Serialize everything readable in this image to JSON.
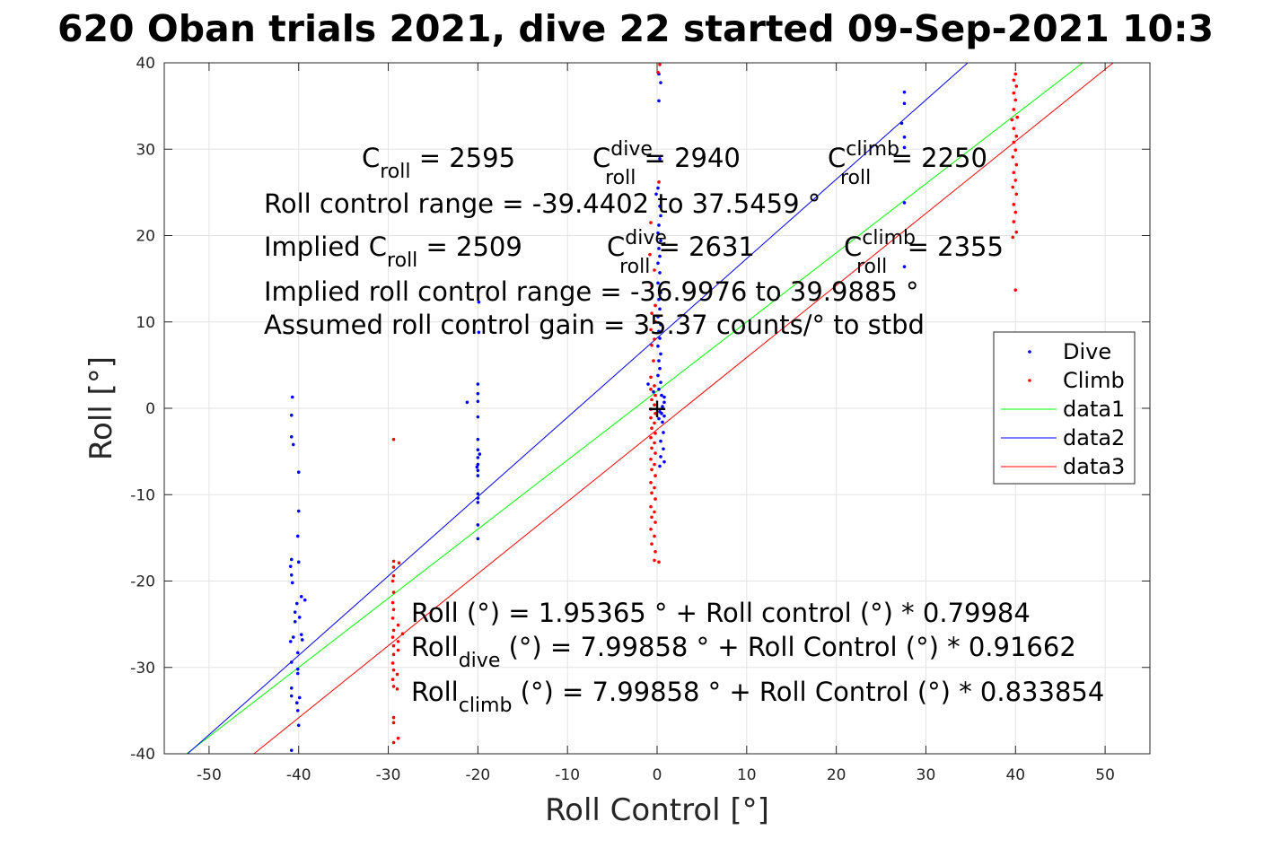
{
  "chart_data": {
    "type": "scatter",
    "title": "620 Oban trials 2021, dive 22 started 09-Sep-2021 10:3",
    "xlabel": "Roll Control [°]",
    "ylabel": "Roll [°]",
    "xlim": [
      -55,
      55
    ],
    "ylim": [
      -40,
      40
    ],
    "xticks": [
      -50,
      -40,
      -30,
      -20,
      -10,
      0,
      10,
      20,
      30,
      40,
      50
    ],
    "yticks": [
      -40,
      -30,
      -20,
      -10,
      0,
      10,
      20,
      30,
      40
    ],
    "grid": true,
    "legend": {
      "placement": "right",
      "entries": [
        {
          "label": "Dive",
          "kind": "dots",
          "color": "#0000ff"
        },
        {
          "label": "Climb",
          "kind": "dots",
          "color": "#ff0000"
        },
        {
          "label": "data1",
          "kind": "line",
          "color": "#00ff00"
        },
        {
          "label": "data2",
          "kind": "line",
          "color": "#0000ff"
        },
        {
          "label": "data3",
          "kind": "line",
          "color": "#ff0000"
        }
      ]
    },
    "series": [
      {
        "name": "Dive",
        "kind": "scatter",
        "color": "#0000ff",
        "points": [
          [
            -40.7,
            1.3
          ],
          [
            -40.8,
            -0.8
          ],
          [
            -40.8,
            -3.3
          ],
          [
            -40.6,
            -4.2
          ],
          [
            -40,
            -7.4
          ],
          [
            -40,
            -11.9
          ],
          [
            -40.1,
            -14.8
          ],
          [
            -40.8,
            -17.5
          ],
          [
            -40.9,
            -18.3
          ],
          [
            -40.8,
            -19.3
          ],
          [
            -40.7,
            -20.2
          ],
          [
            -40,
            -17.8
          ],
          [
            -39.7,
            -21.8
          ],
          [
            -40.2,
            -22.6
          ],
          [
            -40.4,
            -23.6
          ],
          [
            -39.9,
            -24.2
          ],
          [
            -40.4,
            -24.7
          ],
          [
            -39.7,
            -26.2
          ],
          [
            -40.6,
            -26.5
          ],
          [
            -40.9,
            -27
          ],
          [
            -40.1,
            -28.3
          ],
          [
            -40.8,
            -29.4
          ],
          [
            -40.1,
            -30.2
          ],
          [
            -40.1,
            -30.7
          ],
          [
            -40.8,
            -32.4
          ],
          [
            -40.8,
            -33.3
          ],
          [
            -39.9,
            -33.5
          ],
          [
            -40.2,
            -34.1
          ],
          [
            -40.1,
            -35
          ],
          [
            -40,
            -36.7
          ],
          [
            -40.8,
            -39.6
          ],
          [
            -39.3,
            -22.2
          ],
          [
            -39.6,
            -26.8
          ],
          [
            -19.9,
            12.3
          ],
          [
            -19.9,
            8.8
          ],
          [
            -20,
            2.8
          ],
          [
            -20,
            1.7
          ],
          [
            -20,
            0.8
          ],
          [
            -21.2,
            0.7
          ],
          [
            -20,
            -1
          ],
          [
            -20,
            -3.6
          ],
          [
            -20,
            -4.8
          ],
          [
            -20,
            -5.7
          ],
          [
            -20,
            -6.5
          ],
          [
            -20,
            -7.2
          ],
          [
            -20,
            -7.8
          ],
          [
            -20,
            -9.9
          ],
          [
            -20,
            -10.4
          ],
          [
            -20,
            -10.9
          ],
          [
            -20,
            -13.5
          ],
          [
            -20,
            -15.1
          ],
          [
            -19.8,
            -5.3
          ],
          [
            -20.1,
            -6.8
          ],
          [
            0.2,
            38.7
          ],
          [
            0.4,
            37.7
          ],
          [
            0.2,
            35.6
          ],
          [
            0.3,
            28.9
          ],
          [
            0.1,
            25.5
          ],
          [
            -0.1,
            24.8
          ],
          [
            0.3,
            23.4
          ],
          [
            0.4,
            22.3
          ],
          [
            0.2,
            21.2
          ],
          [
            0.1,
            20.3
          ],
          [
            0.4,
            19.4
          ],
          [
            0.2,
            18.5
          ],
          [
            0.3,
            17.6
          ],
          [
            0.1,
            16.8
          ],
          [
            0.3,
            15.7
          ],
          [
            0.1,
            14.5
          ],
          [
            0.4,
            13.4
          ],
          [
            0.2,
            12.6
          ],
          [
            0.3,
            11.5
          ],
          [
            0.1,
            10.6
          ],
          [
            0.4,
            9.7
          ],
          [
            0.2,
            8.9
          ],
          [
            0.3,
            8.1
          ],
          [
            0.1,
            7.2
          ],
          [
            0.4,
            6.3
          ],
          [
            0.2,
            5.5
          ],
          [
            0.3,
            4.6
          ],
          [
            0.1,
            3.8
          ],
          [
            0.4,
            3
          ],
          [
            0.2,
            2.2
          ],
          [
            0.5,
            1.5
          ],
          [
            0.8,
            1.3
          ],
          [
            0.8,
            0.7
          ],
          [
            0.3,
            -0.4
          ],
          [
            0.8,
            -0.9
          ],
          [
            0.6,
            -1.6
          ],
          [
            0.7,
            -2.8
          ],
          [
            0.4,
            -3.8
          ],
          [
            0.7,
            -4.7
          ],
          [
            0.4,
            -5.6
          ],
          [
            0.8,
            -6.2
          ],
          [
            0.3,
            -6.7
          ],
          [
            -1,
            2.8
          ],
          [
            -0.4,
            1.9
          ],
          [
            0.6,
            0.2
          ],
          [
            0.5,
            -0.6
          ],
          [
            0.2,
            -1.2
          ],
          [
            27.6,
            36.6
          ],
          [
            27.6,
            35.3
          ],
          [
            27.3,
            33
          ],
          [
            27.6,
            31.4
          ],
          [
            27.6,
            30.2
          ],
          [
            27.6,
            23.8
          ],
          [
            27.6,
            16.4
          ]
        ]
      },
      {
        "name": "Climb",
        "kind": "scatter",
        "color": "#ff0000",
        "points": [
          [
            -29.4,
            -3.6
          ],
          [
            -29.4,
            -17.7
          ],
          [
            -28.8,
            -17.9
          ],
          [
            -29.4,
            -18.4
          ],
          [
            -29.4,
            -19.4
          ],
          [
            -29.5,
            -20
          ],
          [
            -29.4,
            -21.3
          ],
          [
            -29.5,
            -22.5
          ],
          [
            -29.4,
            -23.3
          ],
          [
            -29.5,
            -24.3
          ],
          [
            -28.9,
            -25.1
          ],
          [
            -29.4,
            -25.7
          ],
          [
            -28.4,
            -26.1
          ],
          [
            -29.5,
            -26.5
          ],
          [
            -28.9,
            -27
          ],
          [
            -29.4,
            -27.5
          ],
          [
            -28.9,
            -28
          ],
          [
            -29.4,
            -28.5
          ],
          [
            -29.5,
            -29.5
          ],
          [
            -29.4,
            -30.3
          ],
          [
            -29,
            -30.8
          ],
          [
            -29.5,
            -31.4
          ],
          [
            -29.4,
            -32.2
          ],
          [
            -29,
            -32.5
          ],
          [
            -29.4,
            -35.8
          ],
          [
            -29.4,
            -36.4
          ],
          [
            -28.9,
            -38.2
          ],
          [
            -29.4,
            -38.7
          ],
          [
            -0.7,
            21.5
          ],
          [
            0.2,
            26.2
          ],
          [
            0.1,
            38.9
          ],
          [
            0.3,
            39.8
          ],
          [
            -0.8,
            17.8
          ],
          [
            -0.3,
            16
          ],
          [
            -0.6,
            14.2
          ],
          [
            -0.2,
            11.9
          ],
          [
            -0.6,
            11
          ],
          [
            -0.2,
            10
          ],
          [
            -0.7,
            9.1
          ],
          [
            -0.3,
            8
          ],
          [
            -0.6,
            7.3
          ],
          [
            -0.4,
            5.5
          ],
          [
            -0.7,
            3.6
          ],
          [
            -0.3,
            2.6
          ],
          [
            -0.7,
            2.2
          ],
          [
            -0.2,
            1.5
          ],
          [
            -0.6,
            1
          ],
          [
            -0.3,
            0.4
          ],
          [
            -0.7,
            -0.1
          ],
          [
            -0.2,
            -0.6
          ],
          [
            -0.7,
            -1.1
          ],
          [
            -0.3,
            -1.7
          ],
          [
            -0.6,
            -2.3
          ],
          [
            -0.2,
            -2.9
          ],
          [
            -0.7,
            -3.4
          ],
          [
            -0.3,
            -4
          ],
          [
            -0.6,
            -4.6
          ],
          [
            -0.2,
            -5.2
          ],
          [
            -0.7,
            -5.9
          ],
          [
            -0.3,
            -6.5
          ],
          [
            -0.6,
            -7.1
          ],
          [
            -0.2,
            -7.8
          ],
          [
            -0.7,
            -8.6
          ],
          [
            -0.3,
            -9.2
          ],
          [
            -0.6,
            -9.8
          ],
          [
            -0.2,
            -10.5
          ],
          [
            -0.7,
            -11.4
          ],
          [
            -0.3,
            -12
          ],
          [
            -0.6,
            -12.6
          ],
          [
            -0.2,
            -13.2
          ],
          [
            -0.7,
            -14
          ],
          [
            -0.3,
            -14.8
          ],
          [
            -0.6,
            -15.7
          ],
          [
            -0.2,
            -16.6
          ],
          [
            -0.3,
            -17.6
          ],
          [
            0.2,
            -17.8
          ],
          [
            40,
            38.7
          ],
          [
            39.8,
            38
          ],
          [
            40.1,
            37.3
          ],
          [
            39.8,
            36.5
          ],
          [
            40,
            35.7
          ],
          [
            39.8,
            34.6
          ],
          [
            40.2,
            33.7
          ],
          [
            39.6,
            33.4
          ],
          [
            39.8,
            32.4
          ],
          [
            40.1,
            31.5
          ],
          [
            39.8,
            30.8
          ],
          [
            40,
            29.9
          ],
          [
            39.7,
            29.1
          ],
          [
            40.1,
            28.2
          ],
          [
            39.8,
            27.3
          ],
          [
            40,
            26.4
          ],
          [
            39.7,
            25.6
          ],
          [
            40.1,
            24.8
          ],
          [
            39.8,
            23.6
          ],
          [
            40,
            22.7
          ],
          [
            39.8,
            21.6
          ],
          [
            40.1,
            20.4
          ],
          [
            39.7,
            19.8
          ],
          [
            40,
            13.7
          ]
        ]
      },
      {
        "name": "data1",
        "kind": "line",
        "color": "#00ff00",
        "points": [
          [
            -52.5,
            -40
          ],
          [
            47.5,
            40
          ]
        ]
      },
      {
        "name": "data2",
        "kind": "line",
        "color": "#0000ff",
        "points": [
          [
            -52.4,
            -40
          ],
          [
            35,
            40.3
          ]
        ]
      },
      {
        "name": "data3",
        "kind": "line",
        "color": "#ff0000",
        "points": [
          [
            -45,
            -40
          ],
          [
            50.9,
            40
          ]
        ]
      }
    ],
    "marker": {
      "label": "+",
      "x": 0,
      "y": 0
    },
    "annotations": {
      "top": [
        {
          "base": "C",
          "sub": "roll",
          "rest": " = 2595"
        },
        {
          "base": "C",
          "sub": "roll",
          "sup": "dive",
          "rest": " = 2940"
        },
        {
          "base": "C",
          "sub": "roll",
          "sup": "climb",
          "rest": " = 2250"
        }
      ],
      "range_line": "Roll control range = -39.4402 to 37.5459 °",
      "implied": [
        {
          "base": "Implied C",
          "sub": "roll",
          "rest": " = 2509"
        },
        {
          "base": "C",
          "sub": "roll",
          "sup": "dive",
          "rest": " = 2631"
        },
        {
          "base": "C",
          "sub": "roll",
          "sup": "climb",
          "rest": " = 2355"
        }
      ],
      "implied_range_line": "Implied roll control range = -36.9976 to 39.9885 °",
      "gain_line": "Assumed roll control gain = 35.37 counts/° to stbd",
      "fits": [
        {
          "base": "Roll",
          "rest": " (°) = 1.95365 ° + Roll control (°) * 0.79984"
        },
        {
          "base": "Roll",
          "sub": "dive",
          "rest": " (°) = 7.99858 ° + Roll Control (°) * 0.91662"
        },
        {
          "base": "Roll",
          "sub": "climb",
          "rest": " (°) = 7.99858 ° + Roll Control (°) * 0.833854"
        }
      ]
    }
  }
}
